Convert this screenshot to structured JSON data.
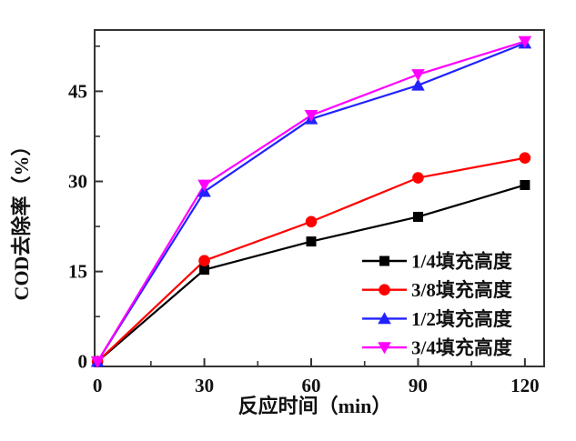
{
  "chart_data": {
    "type": "line",
    "title": "",
    "xlabel": "反应时间（min）",
    "ylabel": "COD去除率（%）",
    "x": [
      0,
      30,
      60,
      90,
      120
    ],
    "series": [
      {
        "name": "1/4填充高度",
        "color": "#000000",
        "marker": "square",
        "values": [
          0,
          15.3,
          20.0,
          24.1,
          29.4
        ]
      },
      {
        "name": "3/8填充高度",
        "color": "#ff0000",
        "marker": "circle",
        "values": [
          0,
          16.8,
          23.3,
          30.6,
          33.9
        ]
      },
      {
        "name": "1/2填充高度",
        "color": "#2222ff",
        "marker": "triangle-up",
        "values": [
          0,
          28.3,
          40.4,
          46.0,
          53.0
        ]
      },
      {
        "name": "3/4填充高度",
        "color": "#ff00ff",
        "marker": "triangle-down",
        "values": [
          0,
          29.4,
          41.0,
          47.8,
          53.3
        ]
      }
    ],
    "xticks": [
      0,
      30,
      60,
      90,
      120
    ],
    "yticks": [
      0,
      15,
      30,
      45
    ],
    "minor_xticks": [
      15,
      45,
      75,
      105
    ],
    "minor_yticks": [
      7.5,
      22.5,
      37.5,
      52.5
    ],
    "xlim": [
      -0.8,
      125.4
    ],
    "ylim": [
      -0.8,
      55.2
    ],
    "grid": false,
    "legend_position": "inside-bottom-right",
    "axis_color": "#333333",
    "text_color": "#111111"
  }
}
